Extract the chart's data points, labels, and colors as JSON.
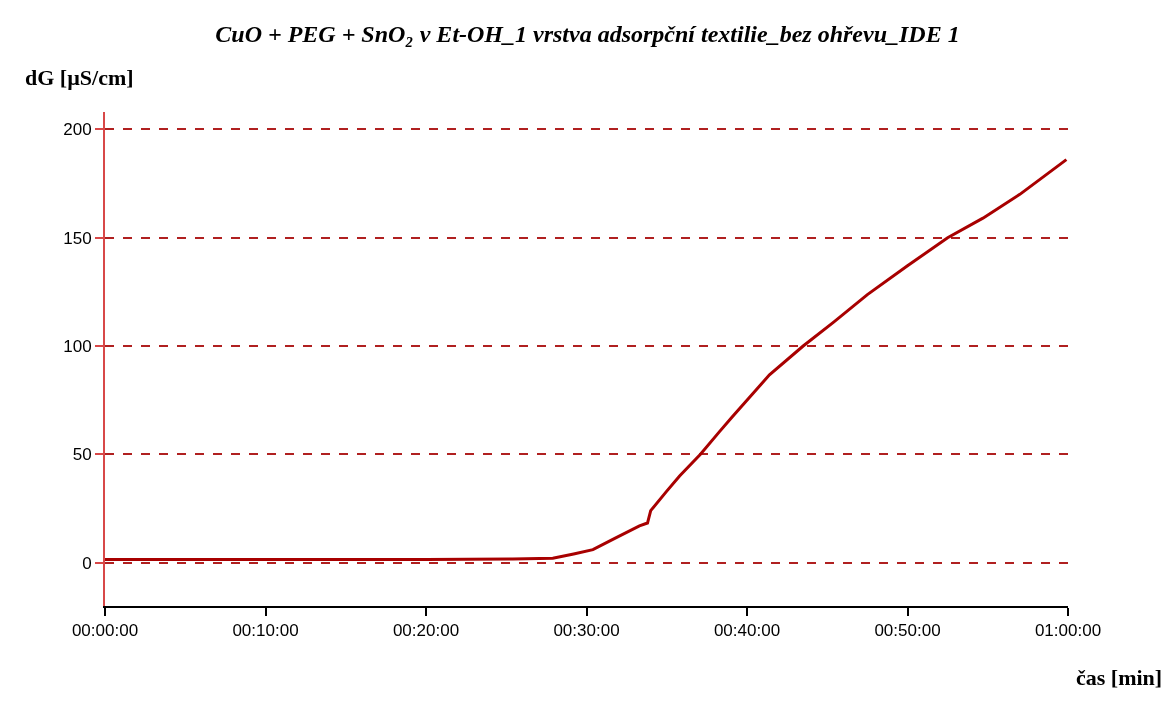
{
  "chart_data": {
    "type": "line",
    "title": "CuO + PEG + SnO₂ v Et-OH_1 vrstva adsorpční textilie_bez ohřevu_IDE 1",
    "xlabel": "čas [min]",
    "ylabel": "dG [µS/cm]",
    "series": [
      {
        "color": "#a80000",
        "x": [
          0,
          5,
          10,
          15,
          20,
          25.4,
          27.9,
          29.2,
          30.4,
          31.7,
          33.3,
          33.8,
          34.0,
          35.0,
          35.8,
          37.1,
          38.3,
          39.1,
          41.4,
          43.5,
          45.4,
          47.5,
          50.0,
          52.5,
          54.7,
          57.0,
          59.9
        ],
        "values": [
          1.5,
          1.5,
          1.5,
          1.5,
          1.5,
          1.7,
          2,
          4,
          6,
          11,
          17,
          18.3,
          24,
          33,
          40,
          50,
          60.6,
          67.5,
          86.7,
          100,
          111,
          123.7,
          137,
          150,
          159,
          170,
          186
        ]
      }
    ],
    "xlim": [
      0,
      60
    ],
    "ylim": [
      -20,
      208
    ],
    "xticks": [
      {
        "value": 0,
        "label": "00:00:00"
      },
      {
        "value": 10,
        "label": "00:10:00"
      },
      {
        "value": 20,
        "label": "00:20:00"
      },
      {
        "value": 30,
        "label": "00:30:00"
      },
      {
        "value": 40,
        "label": "00:40:00"
      },
      {
        "value": 50,
        "label": "00:50:00"
      },
      {
        "value": 60,
        "label": "01:00:00"
      }
    ],
    "yticks": [
      0,
      50,
      100,
      150,
      200
    ],
    "grid": "y",
    "line_style": "solid",
    "marker": "none"
  }
}
